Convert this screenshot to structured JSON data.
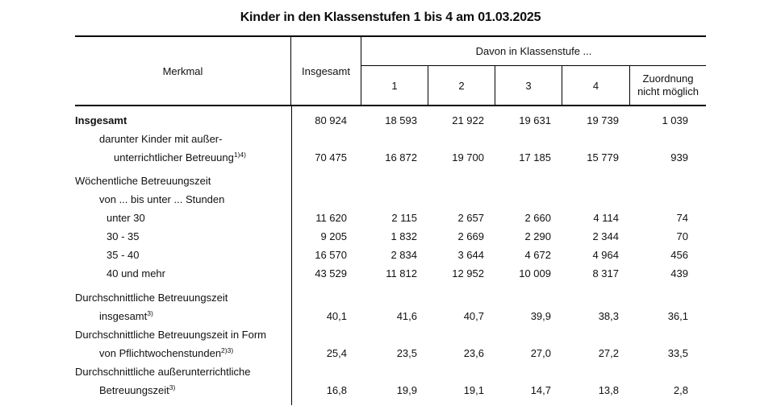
{
  "title": "Kinder in den Klassenstufen 1 bis 4 am 01.03.2025",
  "header": {
    "merkmal": "Merkmal",
    "insgesamt": "Insgesamt",
    "davon": "Davon in Klassenstufe ...",
    "class_1": "1",
    "class_2": "2",
    "class_3": "3",
    "class_4": "4",
    "zuordnung": "Zuordnung nicht möglich"
  },
  "rows": [
    {
      "lines": [
        {
          "text": "Insgesamt"
        }
      ],
      "values": [
        "80 924",
        "18 593",
        "21 922",
        "19 631",
        "19 739",
        "1 039"
      ]
    },
    {
      "lines": [
        {
          "text": "darunter Kinder mit außer-"
        },
        {
          "text": "unterrichtlicher Betreuung",
          "sup": "1)4)"
        }
      ],
      "values": [
        "70 475",
        "16 872",
        "19 700",
        "17 185",
        "15 779",
        "939"
      ]
    },
    {
      "lines": [
        {
          "text": "Wöchentliche Betreuungszeit"
        },
        {
          "text": "von ... bis unter ... Stunden"
        }
      ],
      "values": [
        "",
        "",
        "",
        "",
        "",
        ""
      ]
    },
    {
      "lines": [
        {
          "text": "unter 30"
        }
      ],
      "values": [
        "11 620",
        "2 115",
        "2 657",
        "2 660",
        "4 114",
        "74"
      ]
    },
    {
      "lines": [
        {
          "text": "30 - 35"
        }
      ],
      "values": [
        "9 205",
        "1 832",
        "2 669",
        "2 290",
        "2 344",
        "70"
      ]
    },
    {
      "lines": [
        {
          "text": "35 - 40"
        }
      ],
      "values": [
        "16 570",
        "2 834",
        "3 644",
        "4 672",
        "4 964",
        "456"
      ]
    },
    {
      "lines": [
        {
          "text": "40 und mehr"
        }
      ],
      "values": [
        "43 529",
        "11 812",
        "12 952",
        "10 009",
        "8 317",
        "439"
      ]
    },
    {
      "lines": [
        {
          "text": "Durchschnittliche Betreuungszeit"
        },
        {
          "text": "insgesamt",
          "sup": "3)"
        }
      ],
      "values": [
        "40,1",
        "41,6",
        "40,7",
        "39,9",
        "38,3",
        "36,1"
      ]
    },
    {
      "lines": [
        {
          "text": "Durchschnittliche Betreuungszeit in Form"
        },
        {
          "text": "von Pflichtwochenstunden",
          "sup": "2)3)"
        }
      ],
      "values": [
        "25,4",
        "23,5",
        "23,6",
        "27,0",
        "27,2",
        "33,5"
      ]
    },
    {
      "lines": [
        {
          "text": "Durchschnittliche außerunterrichtliche"
        },
        {
          "text": "Betreuungszeit",
          "sup": "3)"
        }
      ],
      "values": [
        "16,8",
        "19,9",
        "19,1",
        "14,7",
        "13,8",
        "2,8"
      ]
    }
  ]
}
